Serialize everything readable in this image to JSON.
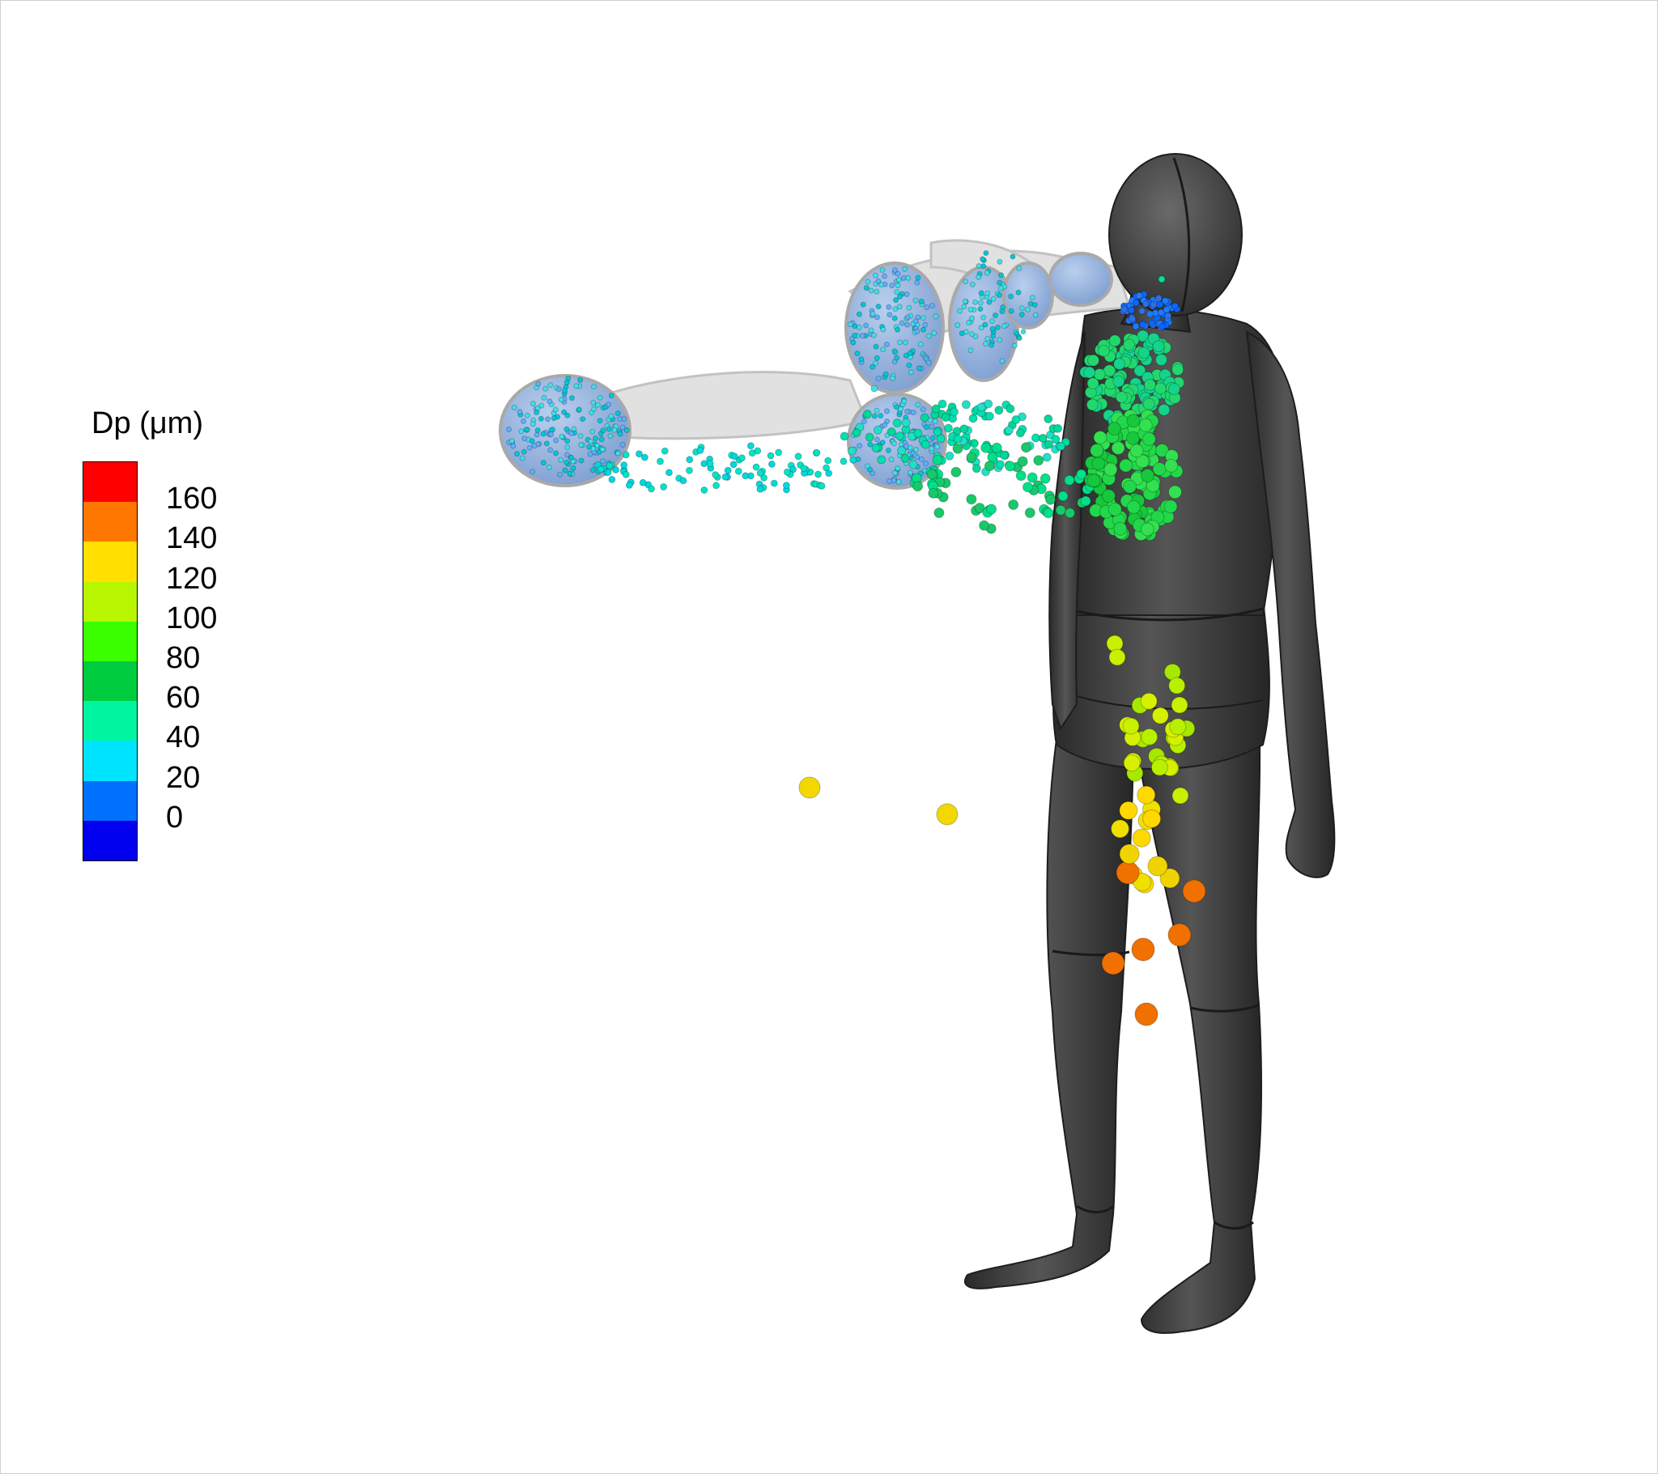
{
  "legend": {
    "title": "Dp (μm)",
    "labels": [
      "160",
      "140",
      "120",
      "100",
      "80",
      "60",
      "40",
      "20",
      "0"
    ],
    "colors": [
      "#ff0000",
      "#ff7700",
      "#ffe000",
      "#b8f500",
      "#3aff00",
      "#00cc3f",
      "#00f5a0",
      "#00e5ff",
      "#0070ff",
      "#0000ee"
    ]
  },
  "scene": {
    "mannequin_color": "#3b3b3b",
    "vapor_cloud_color": "#d9d9d9",
    "droplet_cloud_color": "#8fb3e0"
  }
}
